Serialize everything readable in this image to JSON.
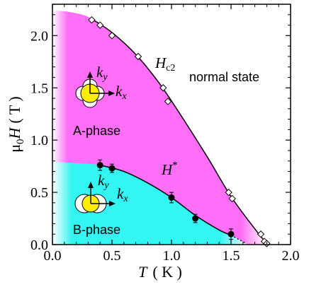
{
  "chart_data": {
    "type": "scatter",
    "xlabel": {
      "var": "T",
      "unit": "( K )"
    },
    "ylabel": {
      "mu": "μ",
      "sub": "0",
      "var": "H",
      "unit": "( T )"
    },
    "xlim": [
      0.0,
      2.0
    ],
    "ylim": [
      0.0,
      2.3
    ],
    "xticks": [
      "0.0",
      "0.5",
      "1.0",
      "1.5",
      "2.0"
    ],
    "yticks": [
      "0.0",
      "0.5",
      "1.0",
      "1.5",
      "2.0"
    ],
    "series": [
      {
        "name": "Hc2",
        "marker": "open-diamond",
        "points": [
          {
            "x": 0.33,
            "y": 2.15
          },
          {
            "x": 0.4,
            "y": 2.1
          },
          {
            "x": 0.5,
            "y": 2.0
          },
          {
            "x": 0.72,
            "y": 1.8
          },
          {
            "x": 0.93,
            "y": 1.5
          },
          {
            "x": 0.97,
            "y": 1.37
          },
          {
            "x": 1.48,
            "y": 0.5
          },
          {
            "x": 1.51,
            "y": 0.44
          },
          {
            "x": 1.75,
            "y": 0.1
          },
          {
            "x": 1.78,
            "y": 0.03
          },
          {
            "x": 1.8,
            "y": 0.01
          }
        ],
        "curve": [
          [
            0.33,
            2.16
          ],
          [
            0.5,
            2.03
          ],
          [
            0.7,
            1.82
          ],
          [
            0.9,
            1.54
          ],
          [
            1.1,
            1.2
          ],
          [
            1.3,
            0.84
          ],
          [
            1.5,
            0.46
          ],
          [
            1.7,
            0.15
          ],
          [
            1.8,
            0.01
          ]
        ]
      },
      {
        "name": "H*",
        "marker": "filled-circle",
        "points": [
          {
            "x": 0.4,
            "y": 0.76,
            "err": 0.05
          },
          {
            "x": 0.5,
            "y": 0.73,
            "err": 0.04
          },
          {
            "x": 1.0,
            "y": 0.45,
            "err": 0.05
          },
          {
            "x": 1.2,
            "y": 0.25,
            "err": 0.04
          },
          {
            "x": 1.5,
            "y": 0.1,
            "err": 0.05
          }
        ],
        "curve": [
          [
            0.4,
            0.76
          ],
          [
            0.6,
            0.7
          ],
          [
            0.8,
            0.59
          ],
          [
            1.0,
            0.45
          ],
          [
            1.2,
            0.28
          ],
          [
            1.4,
            0.14
          ],
          [
            1.5,
            0.09
          ]
        ],
        "dotted_extension": [
          [
            1.5,
            0.09
          ],
          [
            1.58,
            0.04
          ],
          [
            1.62,
            0.015
          ]
        ]
      }
    ],
    "regions": [
      {
        "name": "A-phase",
        "color": "#ff6ef7"
      },
      {
        "name": "B-phase",
        "color": "#33f5f2"
      }
    ],
    "annotations": {
      "hc2": {
        "main": "H",
        "sub": "c2"
      },
      "hstar": {
        "main": "H",
        "sup": "*"
      },
      "normal": "normal state",
      "a_phase": "A-phase",
      "b_phase": "B-phase",
      "kx": {
        "main": "k",
        "sub": "x"
      },
      "ky": {
        "main": "k",
        "sub": "y"
      }
    },
    "grid": false,
    "colors": {
      "a_phase": "#ff6ef7",
      "b_phase": "#33f5f2",
      "gap": "#ffee00"
    }
  }
}
